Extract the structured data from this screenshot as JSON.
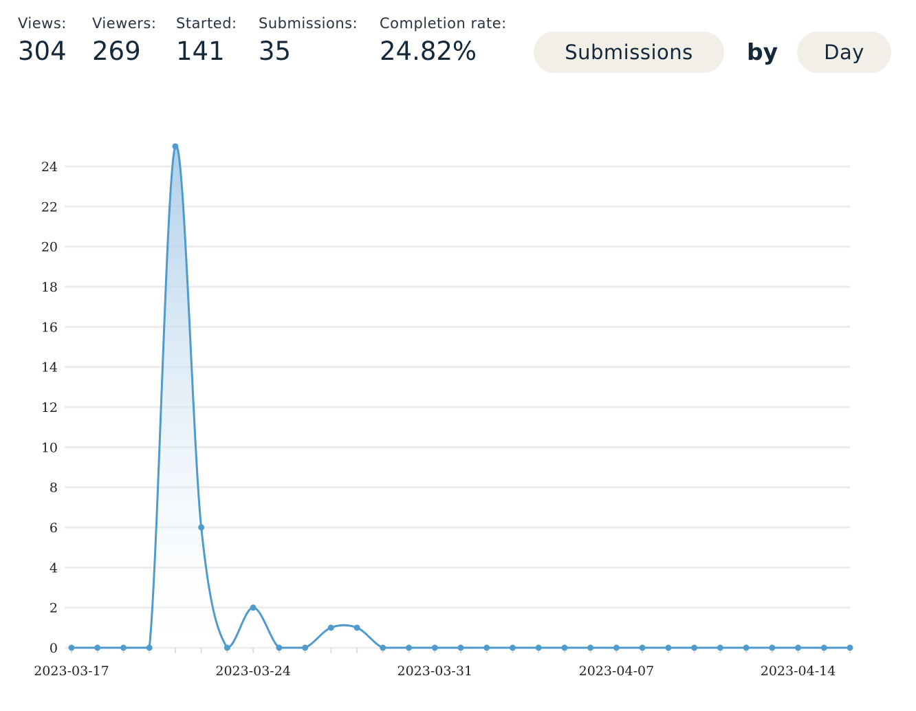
{
  "stats": [
    {
      "label": "Views:",
      "value": "304"
    },
    {
      "label": "Viewers:",
      "value": "269"
    },
    {
      "label": "Started:",
      "value": "141"
    },
    {
      "label": "Submissions:",
      "value": "35"
    },
    {
      "label": "Completion rate:",
      "value": "24.82%"
    }
  ],
  "controls": {
    "metric_label": "Submissions",
    "by_label": "by",
    "period_label": "Day"
  },
  "colors": {
    "line": "#4e9bcc",
    "fill_top": "#9fc6e6",
    "grid": "#ececec",
    "pill_bg": "#f2efe9"
  },
  "chart_data": {
    "type": "area",
    "x": [
      "2023-03-17",
      "2023-03-18",
      "2023-03-19",
      "2023-03-20",
      "2023-03-21",
      "2023-03-22",
      "2023-03-23",
      "2023-03-24",
      "2023-03-25",
      "2023-03-26",
      "2023-03-27",
      "2023-03-28",
      "2023-03-29",
      "2023-03-30",
      "2023-03-31",
      "2023-04-01",
      "2023-04-02",
      "2023-04-03",
      "2023-04-04",
      "2023-04-05",
      "2023-04-06",
      "2023-04-07",
      "2023-04-08",
      "2023-04-09",
      "2023-04-10",
      "2023-04-11",
      "2023-04-12",
      "2023-04-13",
      "2023-04-14",
      "2023-04-15",
      "2023-04-16"
    ],
    "series": [
      {
        "values": [
          0,
          0,
          0,
          0,
          25,
          6,
          0,
          2,
          0,
          0,
          1,
          1,
          0,
          0,
          0,
          0,
          0,
          0,
          0,
          0,
          0,
          0,
          0,
          0,
          0,
          0,
          0,
          0,
          0,
          0,
          0
        ]
      }
    ],
    "ylim": [
      0,
      24
    ],
    "yticks": [
      0,
      2,
      4,
      6,
      8,
      10,
      12,
      14,
      16,
      18,
      20,
      22,
      24
    ],
    "xtick_labels": [
      "2023-03-17",
      "2023-03-24",
      "2023-03-31",
      "2023-04-07",
      "2023-04-14"
    ],
    "grid": true,
    "smooth": true
  }
}
